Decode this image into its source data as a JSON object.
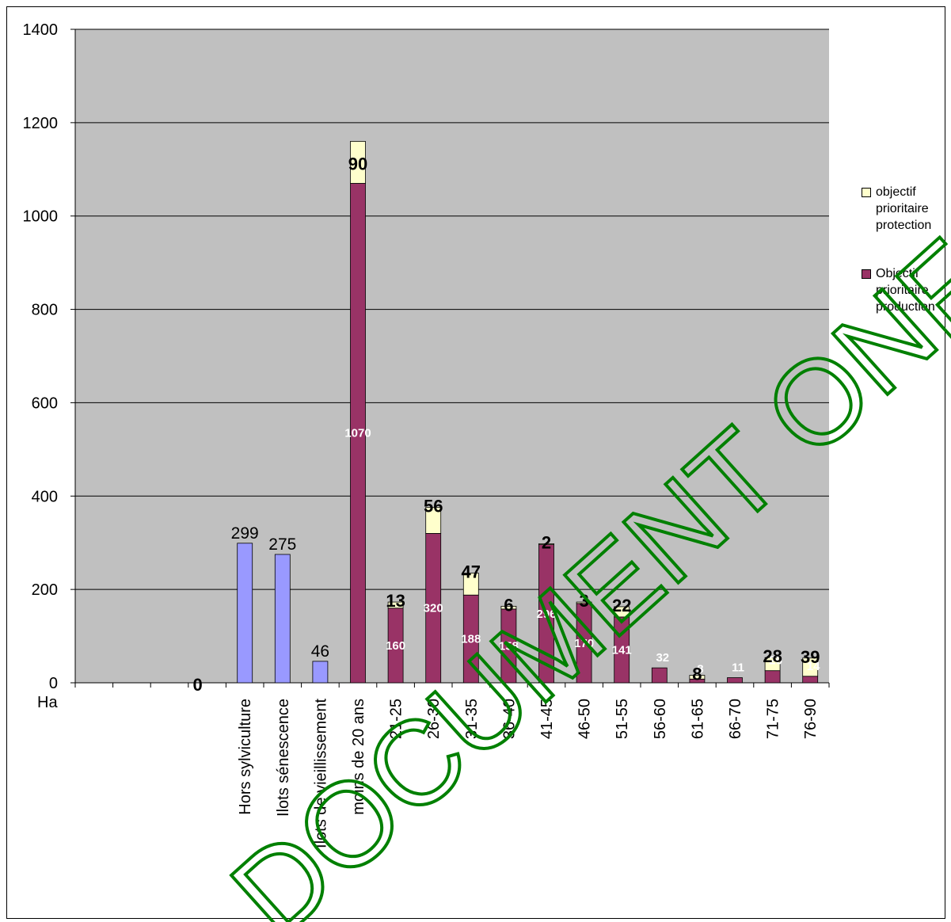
{
  "chart_data": {
    "type": "bar",
    "ylabel": "Ha",
    "ylim": [
      0,
      1400
    ],
    "yticks": [
      0,
      200,
      400,
      600,
      800,
      1000,
      1200,
      1400
    ],
    "grid": true,
    "legend_position": "right",
    "categories": [
      "",
      "",
      "",
      "",
      "Hors sylviculture",
      "Ilots sénescence",
      "Ilots de vieillissement",
      "moins de 20 ans",
      "21-25",
      "26-30",
      "31-35",
      "36-40",
      "41-45",
      "46-50",
      "51-55",
      "56-60",
      "61-65",
      "66-70",
      "71-75",
      "76-90"
    ],
    "single_series": {
      "color": "#9999ff",
      "values": [
        null,
        null,
        null,
        0,
        299,
        275,
        46,
        null,
        null,
        null,
        null,
        null,
        null,
        null,
        null,
        null,
        null,
        null,
        null,
        null
      ]
    },
    "series": [
      {
        "name": "Objectif prioritaire production",
        "color": "#993366",
        "values": [
          null,
          null,
          null,
          null,
          null,
          null,
          null,
          1070,
          160,
          320,
          188,
          158,
          296,
          170,
          141,
          32,
          8,
          11,
          26,
          14
        ]
      },
      {
        "name": "objectif prioritaire protection",
        "color": "#ffffcc",
        "values": [
          null,
          null,
          null,
          null,
          null,
          null,
          null,
          90,
          13,
          56,
          47,
          6,
          2,
          3,
          22,
          null,
          8,
          null,
          28,
          39
        ]
      }
    ]
  },
  "legend": {
    "items": [
      {
        "label": "objectif prioritaire protection",
        "color": "#ffffcc"
      },
      {
        "label": "Objectif prioritaire production",
        "color": "#993366"
      }
    ]
  },
  "watermark": {
    "text": "DOCUMENT ONF",
    "color": "#008000"
  }
}
